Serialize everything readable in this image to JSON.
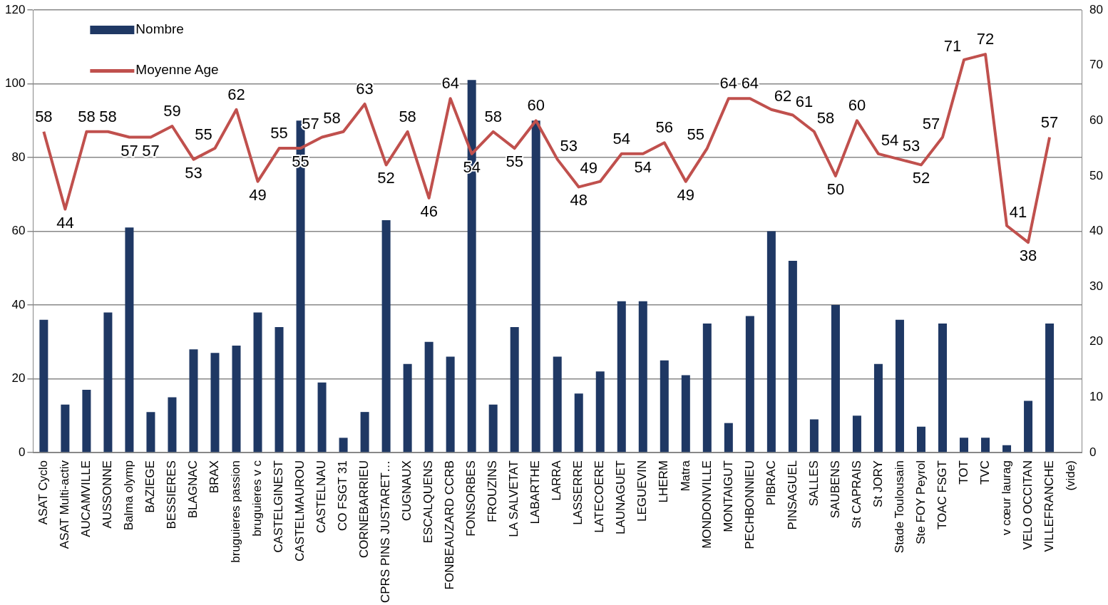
{
  "chart_data": {
    "type": "bar",
    "categories": [
      "ASAT Cyclo",
      "ASAT Multi-activ",
      "AUCAMVILLE",
      "AUSSONNE",
      "Balma olymp",
      "BAZIEGE",
      "BESSIERES",
      "BLAGNAC",
      "BRAX",
      "bruguieres passion",
      "bruguieres v c",
      "CASTELGINEST",
      "CASTELMAUROU",
      "CASTELNAU",
      "CO FSGT 31",
      "CORNEBARRIEU",
      "CPRS PINS JUSTARET…",
      "CUGNAUX",
      "ESCALQUENS",
      "FONBEAUZARD CCRB",
      "FONSORBES",
      "FROUZINS",
      "LA SALVETAT",
      "LABARTHE",
      "LARRA",
      "LASSERRE",
      "LATECOERE",
      "LAUNAGUET",
      "LEGUEVIN",
      "LHERM",
      "Matra",
      "MONDONVILLE",
      "MONTAIGUT",
      "PECHBONNIEU",
      "PIBRAC",
      "PINSAGUEL",
      "SALLES",
      "SAUBENS",
      "St CAPRAIS",
      "St JORY",
      "Stade Toulousain",
      "Ste FOY Peyrol",
      "TOAC FSGT",
      "TOT",
      "TVC",
      "v cœur laurag",
      "VELO OCCITAN",
      "VILLEFRANCHE",
      "(vide)"
    ],
    "series": [
      {
        "name": "Nombre",
        "color": "#1f3864",
        "values": [
          36,
          13,
          17,
          38,
          61,
          11,
          15,
          28,
          27,
          29,
          38,
          34,
          90,
          19,
          4,
          11,
          63,
          24,
          30,
          26,
          101,
          13,
          34,
          90,
          26,
          16,
          22,
          41,
          41,
          25,
          21,
          35,
          8,
          37,
          60,
          52,
          9,
          40,
          10,
          24,
          36,
          7,
          35,
          4,
          4,
          2,
          14,
          35,
          null
        ]
      },
      {
        "name": "Moyenne Age",
        "type": "line",
        "axis": "y2",
        "color": "#c0504d",
        "values": [
          58,
          44,
          58,
          58,
          57,
          57,
          59,
          53,
          55,
          62,
          49,
          55,
          55,
          57,
          58,
          63,
          52,
          58,
          46,
          64,
          54,
          58,
          55,
          60,
          53,
          48,
          49,
          54,
          54,
          56,
          49,
          55,
          64,
          64,
          62,
          61,
          58,
          50,
          60,
          54,
          53,
          52,
          57,
          71,
          72,
          41,
          38,
          57,
          null
        ],
        "value_labels": [
          "58",
          "44",
          "58",
          "58",
          "57",
          "57",
          "59",
          "53",
          "55",
          "62",
          "49",
          "55",
          "55",
          "57",
          "58",
          "63",
          "52",
          "58",
          "46",
          "64",
          "54",
          "58",
          "55",
          "60",
          "53",
          "48",
          "49",
          "54",
          "54",
          "56",
          "49",
          "55",
          "64",
          "64",
          "62",
          "61",
          "58",
          "50",
          "60",
          "54",
          "53",
          "52",
          "57",
          "71",
          "72",
          "41",
          "38",
          "57",
          null
        ]
      }
    ],
    "ylim": [
      0,
      120
    ],
    "yticks": [
      0,
      20,
      40,
      60,
      80,
      100,
      120
    ],
    "y2lim": [
      0,
      80
    ],
    "y2ticks": [
      0,
      10,
      20,
      30,
      40,
      50,
      60,
      70,
      80
    ],
    "grid": "y",
    "legend": "top left",
    "marker": "none",
    "line_style": "solid"
  }
}
